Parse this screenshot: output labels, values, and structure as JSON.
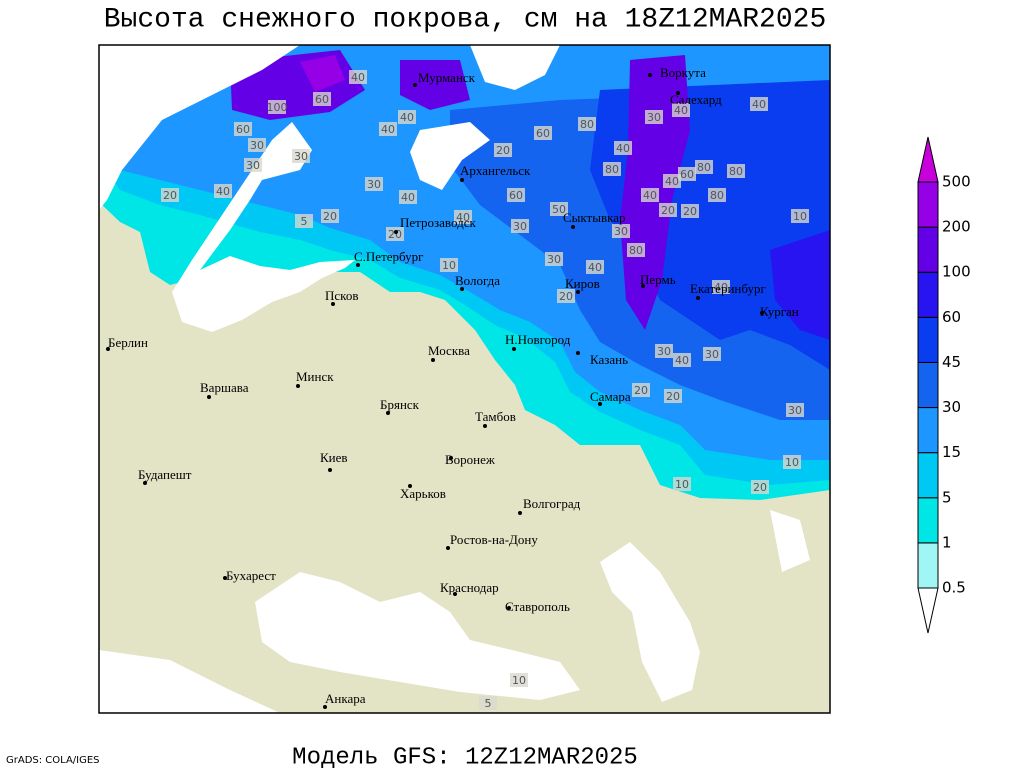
{
  "title": "Высота снежного покрова, см на 18Z12MAR2025",
  "footer": "Модель GFS: 12Z12MAR2025",
  "credit": "GrADS: COLA/IGES",
  "cities": [
    "Мурманск",
    "Воркута",
    "Салехард",
    "Архангельск",
    "Петрозаводск",
    "Сыктывкар",
    "С.Петербург",
    "Вологда",
    "Киров",
    "Пермь",
    "Екатеринбург",
    "Курган",
    "Псков",
    "Берлин",
    "Москва",
    "Н.Новгород",
    "Казань",
    "Варшава",
    "Минск",
    "Брянск",
    "Тамбов",
    "Самара",
    "Киев",
    "Воронеж",
    "Будапешт",
    "Харьков",
    "Волгоград",
    "Ростов-на-Дону",
    "Бухарест",
    "Краснодар",
    "Ставрополь",
    "Анкара"
  ],
  "contour_labels": [
    40,
    60,
    100,
    60,
    30,
    30,
    20,
    40,
    40,
    40,
    30,
    30,
    40,
    20,
    5,
    20,
    40,
    60,
    60,
    80,
    20,
    40,
    80,
    40,
    30,
    40,
    80,
    80,
    60,
    80,
    40,
    40,
    20,
    20,
    50,
    30,
    80,
    30,
    40,
    20,
    30,
    10,
    40,
    30,
    40,
    30,
    20,
    20,
    30,
    10,
    10,
    20,
    10,
    5,
    10
  ],
  "colorbar": {
    "levels": [
      0.5,
      1,
      5,
      15,
      30,
      45,
      60,
      100,
      200,
      500
    ],
    "colors": [
      "#ffffff",
      "#a0f5f5",
      "#00e6e6",
      "#00c8f5",
      "#1e96ff",
      "#1464f0",
      "#0a3cf0",
      "#2814f0",
      "#6400e6",
      "#9600e6",
      "#c800dc"
    ]
  }
}
